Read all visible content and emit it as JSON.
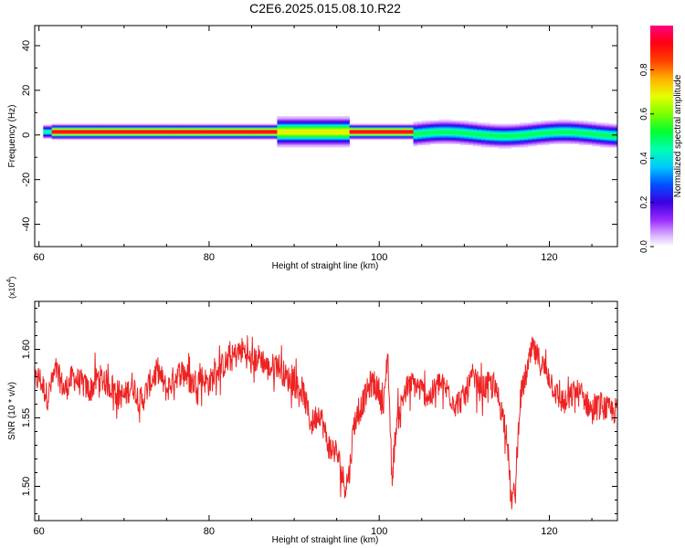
{
  "title": "C2E6.2025.015.08.10.R22",
  "colors": {
    "snr_line": "#ee2222",
    "axes": "#000000"
  },
  "chart_data": [
    {
      "type": "heatmap",
      "title": "C2E6.2025.015.08.10.R22",
      "xlabel": "Height of straight line (km)",
      "ylabel": "Frequency (Hz)",
      "xlim": [
        59.5,
        128
      ],
      "ylim": [
        -50,
        49
      ],
      "xticks": [
        60,
        80,
        100,
        120
      ],
      "xtick_labels": [
        "60",
        "80",
        "100",
        "120"
      ],
      "yticks": [
        -40,
        -20,
        0,
        20,
        40
      ],
      "ytick_labels": [
        "-40",
        "-20",
        "0",
        "20",
        "40"
      ],
      "colorbar": {
        "label": "Normalized spectral amplitude",
        "range": [
          0,
          1
        ],
        "ticks": [
          0.0,
          0.2,
          0.4,
          0.6,
          0.8
        ],
        "tick_labels": [
          "0.0",
          "0.2",
          "0.4",
          "0.6",
          "0.8"
        ],
        "colormap": "rainbow (white-violet-blue-cyan-green-yellow-red-magenta)"
      },
      "segments": [
        {
          "x0": 60.5,
          "x1": 61.5,
          "core_freq": 1.5,
          "peak": 0.45,
          "spread": 3
        },
        {
          "x0": 61.5,
          "x1": 88.0,
          "core_freq": 1.5,
          "peak": 0.95,
          "spread": 3
        },
        {
          "x0": 88.0,
          "x1": 96.5,
          "core_freq": 1.5,
          "peak": 0.7,
          "spread": 6
        },
        {
          "x0": 96.5,
          "x1": 104.0,
          "core_freq": 1.5,
          "peak": 0.95,
          "spread": 3
        },
        {
          "x0": 104.0,
          "x1": 128.0,
          "core_freq": 0.5,
          "peak": 0.5,
          "spread": 5
        }
      ]
    },
    {
      "type": "line",
      "xlabel": "Height of straight line (km)",
      "ylabel": "SNR (10 * v/v)",
      "y_multiplier": "(x10",
      "y_multiplier_exp": "4",
      "y_multiplier_close": ")",
      "xlim": [
        59.5,
        128
      ],
      "ylim": [
        1.475,
        1.635
      ],
      "xticks": [
        60,
        80,
        100,
        120
      ],
      "xtick_labels": [
        "60",
        "80",
        "100",
        "120"
      ],
      "yticks": [
        1.5,
        1.55,
        1.6
      ],
      "ytick_labels": [
        "1.50",
        "1.55",
        "1.60"
      ],
      "series": [
        {
          "x": [
            59.5,
            60,
            61,
            62,
            63,
            64,
            65,
            66,
            67,
            68,
            69,
            70,
            71,
            72,
            73,
            74,
            75,
            76,
            77,
            78,
            79,
            80,
            81,
            82,
            83,
            84,
            85,
            86,
            87,
            88,
            89,
            90,
            91,
            92,
            93,
            94,
            95,
            96,
            96.5,
            97,
            98,
            99,
            100,
            100.5,
            101,
            101.2,
            101.5,
            102,
            103,
            104,
            105,
            106,
            107,
            108,
            109,
            110,
            111,
            112,
            113,
            114,
            115,
            115.5,
            116,
            116.5,
            117,
            118,
            119,
            120,
            121,
            122,
            123,
            124,
            125,
            126,
            127,
            128
          ],
          "y": [
            1.575,
            1.58,
            1.565,
            1.585,
            1.57,
            1.58,
            1.575,
            1.57,
            1.58,
            1.575,
            1.57,
            1.565,
            1.575,
            1.56,
            1.575,
            1.585,
            1.57,
            1.58,
            1.585,
            1.575,
            1.58,
            1.575,
            1.585,
            1.59,
            1.595,
            1.6,
            1.59,
            1.595,
            1.585,
            1.59,
            1.58,
            1.575,
            1.57,
            1.545,
            1.555,
            1.53,
            1.525,
            1.5,
            1.51,
            1.545,
            1.56,
            1.575,
            1.57,
            1.555,
            1.6,
            1.56,
            1.505,
            1.545,
            1.57,
            1.575,
            1.57,
            1.565,
            1.575,
            1.57,
            1.56,
            1.565,
            1.58,
            1.57,
            1.575,
            1.565,
            1.54,
            1.49,
            1.495,
            1.56,
            1.575,
            1.6,
            1.59,
            1.58,
            1.565,
            1.56,
            1.57,
            1.565,
            1.555,
            1.56,
            1.555,
            1.555
          ]
        }
      ]
    }
  ]
}
